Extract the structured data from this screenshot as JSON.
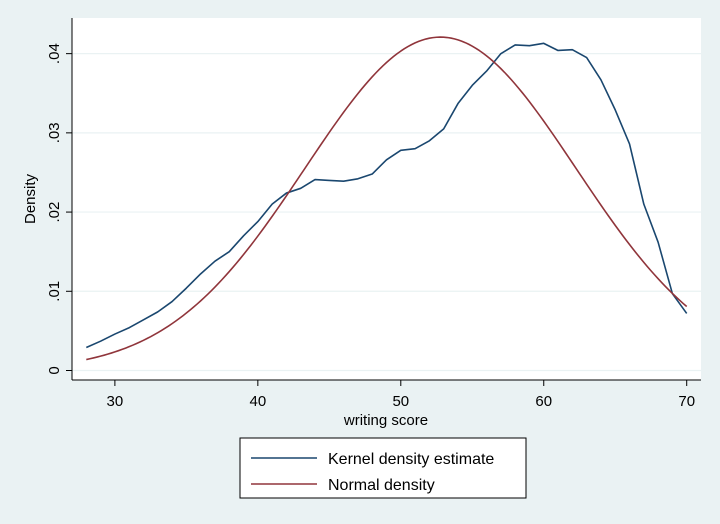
{
  "chart_data": {
    "type": "line",
    "xlabel": "writing score",
    "ylabel": "Density",
    "xlim": [
      27,
      71
    ],
    "ylim": [
      -0.0012,
      0.0445
    ],
    "xticks": [
      30,
      40,
      50,
      60,
      70
    ],
    "xtick_labels": [
      "30",
      "40",
      "50",
      "60",
      "70"
    ],
    "yticks": [
      0,
      0.01,
      0.02,
      0.03,
      0.04
    ],
    "ytick_labels": [
      "0",
      ".01",
      ".02",
      ".03",
      ".04"
    ],
    "grid": "horizontal",
    "legend_position": "bottom",
    "series": [
      {
        "name": "Kernel density estimate",
        "color": "#1a476f",
        "x": [
          28,
          29,
          30,
          31,
          32,
          33,
          34,
          35,
          36,
          37,
          38,
          39,
          40,
          41,
          42,
          43,
          44,
          45,
          46,
          47,
          48,
          49,
          50,
          51,
          52,
          53,
          54,
          55,
          56,
          57,
          58,
          59,
          60,
          61,
          62,
          63,
          64,
          65,
          66,
          67,
          68,
          69,
          70
        ],
        "y": [
          0.0029,
          0.0037,
          0.0046,
          0.0054,
          0.0064,
          0.0074,
          0.0087,
          0.0104,
          0.0122,
          0.0138,
          0.015,
          0.017,
          0.0188,
          0.021,
          0.0224,
          0.023,
          0.0241,
          0.024,
          0.0239,
          0.0242,
          0.0248,
          0.0266,
          0.0278,
          0.028,
          0.029,
          0.0305,
          0.0337,
          0.036,
          0.0378,
          0.04,
          0.0411,
          0.041,
          0.0413,
          0.0404,
          0.0405,
          0.0395,
          0.0367,
          0.0329,
          0.0286,
          0.021,
          0.0162,
          0.0097,
          0.0072
        ]
      },
      {
        "name": "Normal density",
        "color": "#90353b",
        "mean": 52.775,
        "sd": 9.4786,
        "x_start": 28,
        "x_end": 70
      }
    ]
  }
}
